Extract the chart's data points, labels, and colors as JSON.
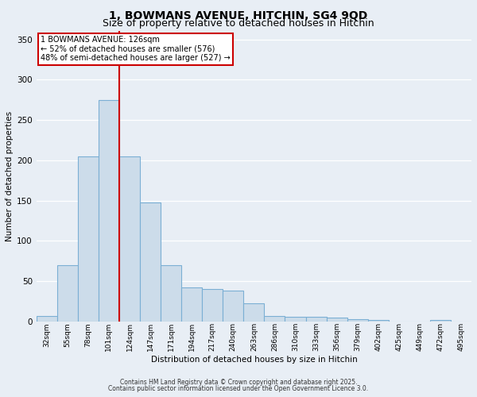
{
  "title1": "1, BOWMANS AVENUE, HITCHIN, SG4 9QD",
  "title2": "Size of property relative to detached houses in Hitchin",
  "xlabel": "Distribution of detached houses by size in Hitchin",
  "ylabel": "Number of detached properties",
  "categories": [
    "32sqm",
    "55sqm",
    "78sqm",
    "101sqm",
    "124sqm",
    "147sqm",
    "171sqm",
    "194sqm",
    "217sqm",
    "240sqm",
    "263sqm",
    "286sqm",
    "310sqm",
    "333sqm",
    "356sqm",
    "379sqm",
    "402sqm",
    "425sqm",
    "449sqm",
    "472sqm",
    "495sqm"
  ],
  "values": [
    7,
    70,
    205,
    275,
    205,
    148,
    70,
    42,
    40,
    38,
    22,
    7,
    6,
    6,
    5,
    3,
    2,
    0,
    0,
    2,
    0
  ],
  "bar_color": "#ccdcea",
  "bar_edge_color": "#7bafd4",
  "vline_color": "#cc0000",
  "annotation_line1": "1 BOWMANS AVENUE: 126sqm",
  "annotation_line2": "← 52% of detached houses are smaller (576)",
  "annotation_line3": "48% of semi-detached houses are larger (527) →",
  "annotation_box_facecolor": "#ffffff",
  "annotation_box_edgecolor": "#cc0000",
  "footnote1": "Contains HM Land Registry data © Crown copyright and database right 2025.",
  "footnote2": "Contains public sector information licensed under the Open Government Licence 3.0.",
  "ylim": [
    0,
    360
  ],
  "yticks": [
    0,
    50,
    100,
    150,
    200,
    250,
    300,
    350
  ],
  "background_color": "#e8eef5",
  "grid_color": "#ffffff",
  "title1_fontsize": 10,
  "title2_fontsize": 9
}
